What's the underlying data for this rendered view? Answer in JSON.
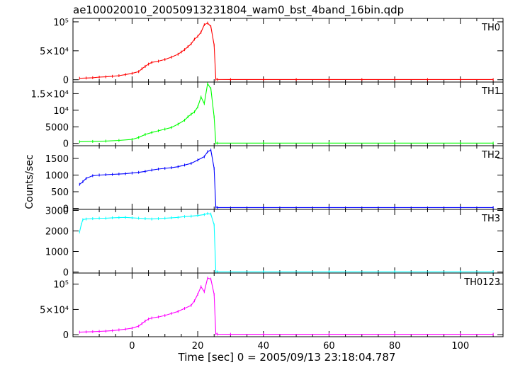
{
  "title": "ae100020010_20050913231804_wam0_bst_4band_16bin.qdp",
  "ylabel": "Counts/sec",
  "xlabel": "Time [sec] 0 = 2005/09/13 23:18:04.787",
  "colors": {
    "TH0": "#ff0000",
    "TH1": "#00ff00",
    "TH2": "#0000ff",
    "TH3": "#00ffff",
    "TH0123": "#ff00ff",
    "frame": "#000000"
  },
  "chart_data": [
    {
      "type": "line",
      "panel": "TH0",
      "band_label": "TH0",
      "xlim": [
        -18,
        113
      ],
      "ylim": [
        -4000,
        106000
      ],
      "xticks": [
        0,
        20,
        40,
        60,
        80,
        100
      ],
      "xtick_labels": [
        "0",
        "20",
        "40",
        "60",
        "80",
        "100"
      ],
      "yticks": [
        0,
        50000,
        100000
      ],
      "ytick_labels": [
        "0",
        "5×10⁴",
        "10⁵"
      ],
      "series": [
        {
          "x": [
            -16,
            -14,
            -12,
            -10,
            -8,
            -6,
            -4,
            -2,
            0,
            2,
            3,
            4,
            5,
            6,
            8,
            10,
            12,
            14,
            15,
            16,
            17,
            18,
            19,
            20,
            21,
            22,
            23,
            24,
            25,
            25.5,
            26,
            30,
            40,
            50,
            60,
            70,
            80,
            90,
            100,
            110
          ],
          "y": [
            2500,
            3000,
            3500,
            4500,
            5000,
            6000,
            7000,
            9000,
            11000,
            14000,
            19000,
            23000,
            27000,
            30000,
            32000,
            35000,
            39000,
            44000,
            48000,
            52000,
            57000,
            62000,
            70000,
            75000,
            82000,
            95000,
            98000,
            92000,
            60000,
            1000,
            500,
            400,
            400,
            400,
            400,
            400,
            400,
            400,
            400,
            400
          ]
        }
      ]
    },
    {
      "type": "line",
      "panel": "TH1",
      "band_label": "TH1",
      "xlim": [
        -18,
        113
      ],
      "ylim": [
        -700,
        18500
      ],
      "xticks": [
        0,
        20,
        40,
        60,
        80,
        100
      ],
      "yticks": [
        0,
        5000,
        10000,
        15000
      ],
      "ytick_labels": [
        "0",
        "5000",
        "10⁴",
        "1.5×10⁴"
      ],
      "series": [
        {
          "x": [
            -16,
            -12,
            -8,
            -4,
            0,
            2,
            4,
            6,
            8,
            10,
            12,
            14,
            16,
            17,
            18,
            19,
            20,
            21,
            22,
            23,
            24,
            25,
            25.5,
            26,
            40,
            60,
            80,
            100,
            110
          ],
          "y": [
            500,
            600,
            700,
            900,
            1200,
            1800,
            2700,
            3300,
            3800,
            4300,
            4800,
            5800,
            7000,
            8000,
            8800,
            9500,
            11000,
            14000,
            12000,
            18000,
            16500,
            8000,
            100,
            80,
            80,
            80,
            80,
            80,
            80
          ]
        }
      ]
    },
    {
      "type": "line",
      "panel": "TH2",
      "band_label": "TH2",
      "xlim": [
        -18,
        113
      ],
      "ylim": [
        -30,
        1880
      ],
      "xticks": [
        0,
        20,
        40,
        60,
        80,
        100
      ],
      "yticks": [
        0,
        500,
        1000,
        1500
      ],
      "ytick_labels": [
        "0",
        "500",
        "1000",
        "1500"
      ],
      "series": [
        {
          "x": [
            -16,
            -15,
            -14,
            -12,
            -10,
            -8,
            -6,
            -4,
            -2,
            0,
            2,
            4,
            6,
            8,
            10,
            12,
            14,
            16,
            18,
            20,
            22,
            23,
            24,
            25,
            25.5,
            26,
            40,
            60,
            80,
            100,
            110
          ],
          "y": [
            720,
            800,
            900,
            980,
            1000,
            1010,
            1020,
            1030,
            1040,
            1060,
            1080,
            1110,
            1150,
            1180,
            1200,
            1220,
            1250,
            1300,
            1350,
            1450,
            1550,
            1700,
            1750,
            1200,
            40,
            25,
            25,
            25,
            25,
            25,
            25
          ]
        }
      ]
    },
    {
      "type": "line",
      "panel": "TH3",
      "band_label": "TH3",
      "xlim": [
        -18,
        113
      ],
      "ylim": [
        -50,
        3050
      ],
      "xticks": [
        0,
        20,
        40,
        60,
        80,
        100
      ],
      "yticks": [
        0,
        1000,
        2000,
        3000
      ],
      "ytick_labels": [
        "0",
        "1000",
        "2000",
        "3000"
      ],
      "series": [
        {
          "x": [
            -16,
            -15.5,
            -15,
            -14,
            -12,
            -10,
            -8,
            -6,
            -4,
            -2,
            0,
            2,
            4,
            6,
            8,
            10,
            12,
            14,
            16,
            18,
            20,
            22,
            23,
            24,
            25,
            25.5,
            26,
            40,
            60,
            80,
            100,
            110
          ],
          "y": [
            1950,
            2300,
            2550,
            2580,
            2600,
            2620,
            2620,
            2640,
            2650,
            2660,
            2640,
            2620,
            2600,
            2580,
            2600,
            2620,
            2640,
            2660,
            2700,
            2720,
            2750,
            2800,
            2850,
            2820,
            2300,
            20,
            10,
            10,
            10,
            10,
            10,
            10
          ]
        }
      ]
    },
    {
      "type": "line",
      "panel": "TH0123",
      "band_label": "TH0123",
      "xlim": [
        -18,
        113
      ],
      "ylim": [
        -4000,
        122000
      ],
      "xticks": [
        0,
        20,
        40,
        60,
        80,
        100
      ],
      "yticks": [
        0,
        50000,
        100000
      ],
      "ytick_labels": [
        "0",
        "5×10⁴",
        "10⁵"
      ],
      "series": [
        {
          "x": [
            -16,
            -14,
            -12,
            -10,
            -8,
            -6,
            -4,
            -2,
            0,
            2,
            3,
            4,
            5,
            6,
            8,
            10,
            12,
            14,
            16,
            18,
            19,
            20,
            21,
            22,
            23,
            24,
            25,
            25.5,
            26,
            30,
            40,
            60,
            80,
            100,
            110
          ],
          "y": [
            5000,
            5500,
            6000,
            6500,
            7000,
            8000,
            9500,
            11000,
            13000,
            17000,
            22000,
            27000,
            31000,
            33000,
            35000,
            38000,
            42000,
            46000,
            52000,
            58000,
            67000,
            80000,
            95000,
            85000,
            112000,
            110000,
            80000,
            2000,
            1000,
            800,
            800,
            800,
            800,
            800,
            800
          ]
        }
      ]
    }
  ]
}
